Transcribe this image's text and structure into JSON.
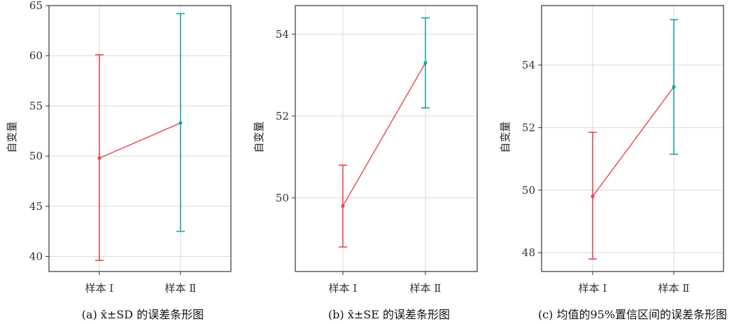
{
  "colors": {
    "sample1": "#e8474e",
    "sample2": "#17a3a8",
    "connector": "#e8474e"
  },
  "chart_data": [
    {
      "type": "errorbar",
      "caption": "(a) x̄±SD 的误差条形图",
      "ylabel": "自变量",
      "categories": [
        "样本 Ⅰ",
        "样本 Ⅱ"
      ],
      "ylim": [
        38.5,
        65
      ],
      "yticks": [
        40,
        45,
        50,
        55,
        60,
        65
      ],
      "grid": true,
      "points": [
        {
          "category": "样本 Ⅰ",
          "mean": 49.8,
          "low": 39.6,
          "high": 60.1
        },
        {
          "category": "样本 Ⅱ",
          "mean": 53.3,
          "low": 42.5,
          "high": 64.2
        }
      ]
    },
    {
      "type": "errorbar",
      "caption": "(b) x̄±SE 的误差条形图",
      "ylabel": "自变量",
      "categories": [
        "样本 Ⅰ",
        "样本 Ⅱ"
      ],
      "ylim": [
        48.2,
        54.7
      ],
      "yticks": [
        50,
        52,
        54
      ],
      "grid": true,
      "points": [
        {
          "category": "样本 Ⅰ",
          "mean": 49.8,
          "low": 48.8,
          "high": 50.8
        },
        {
          "category": "样本 Ⅱ",
          "mean": 53.3,
          "low": 52.2,
          "high": 54.4
        }
      ]
    },
    {
      "type": "errorbar",
      "caption": "(c) 均值的95%置信区间的误差条形图",
      "ylabel": "自变量",
      "categories": [
        "样本 Ⅰ",
        "样本 Ⅱ"
      ],
      "ylim": [
        47.4,
        55.9
      ],
      "yticks": [
        48,
        50,
        52,
        54
      ],
      "grid": true,
      "points": [
        {
          "category": "样本 Ⅰ",
          "mean": 49.8,
          "low": 47.8,
          "high": 51.85
        },
        {
          "category": "样本 Ⅱ",
          "mean": 53.3,
          "low": 51.15,
          "high": 55.45
        }
      ]
    }
  ]
}
